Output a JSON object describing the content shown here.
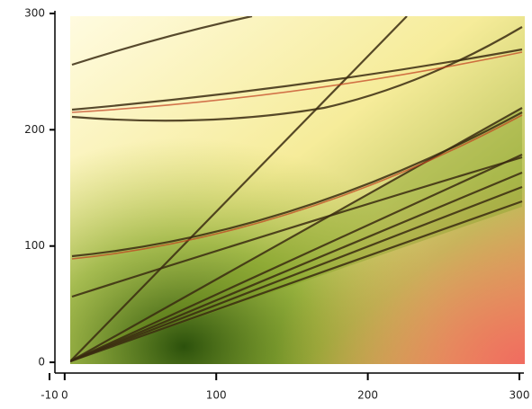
{
  "chart_data": {
    "type": "heatmap",
    "xlim": [
      -10,
      300
    ],
    "ylim": [
      -10,
      300
    ],
    "xticks": [
      -10,
      0,
      100,
      200,
      300
    ],
    "yticks": [
      0,
      100,
      200,
      300
    ]
  }
}
